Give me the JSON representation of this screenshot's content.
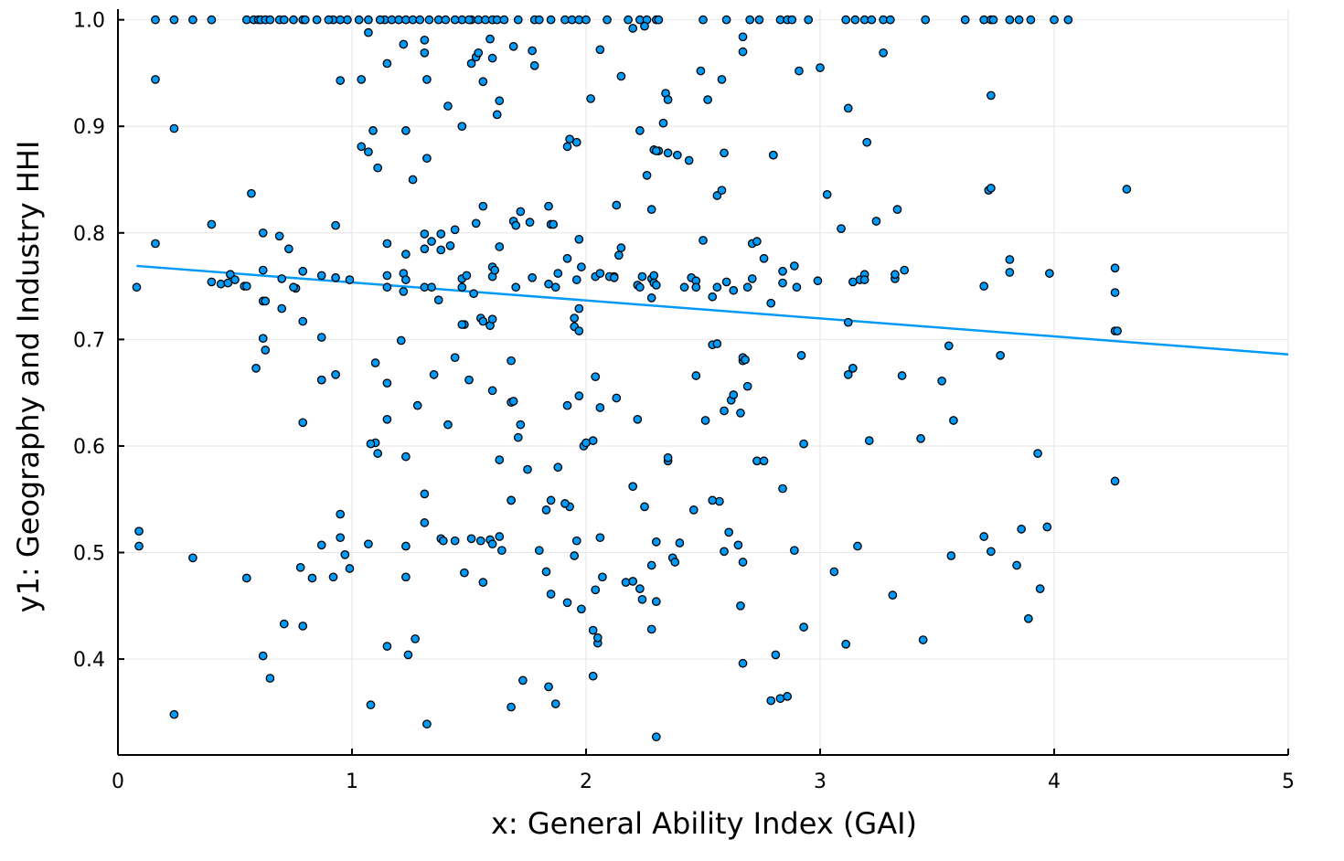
{
  "chart_data": {
    "type": "scatter",
    "title": "",
    "xlabel": "x: General Ability Index (GAI)",
    "ylabel": "y1: Geography and Industry HHI",
    "xlim": [
      0,
      5
    ],
    "ylim": [
      0.31,
      1.01
    ],
    "xticks": [
      0,
      1,
      2,
      3,
      4,
      5
    ],
    "xtick_labels": [
      "0",
      "1",
      "2",
      "3",
      "4",
      "5"
    ],
    "yticks": [
      0.4,
      0.5,
      0.6,
      0.7,
      0.8,
      0.9,
      1.0
    ],
    "ytick_labels": [
      "0.4",
      "0.5",
      "0.6",
      "0.7",
      "0.8",
      "0.9",
      "1.0"
    ],
    "grid": true,
    "legend": "none",
    "point_color": "#009af9",
    "line_color": "#009af9",
    "trend_line": {
      "x": [
        0.08,
        5.0
      ],
      "y": [
        0.769,
        0.686
      ]
    },
    "series": [
      {
        "x": [
          0.16,
          0.24,
          0.32,
          0.4,
          0.55,
          0.58,
          0.6,
          0.61,
          0.63,
          0.65,
          0.69,
          0.71,
          0.79,
          0.92,
          0.98,
          1.07,
          1.14,
          1.17,
          1.2,
          1.23,
          1.26,
          1.29,
          1.37,
          1.4,
          1.47,
          1.51,
          1.54,
          1.57,
          1.6,
          1.62,
          1.71,
          1.78,
          1.8,
          1.91,
          1.94,
          2.09,
          2.23,
          2.26,
          2.3,
          2.31,
          2.74,
          2.83,
          2.86,
          2.88,
          2.95,
          3.11,
          3.15,
          3.19,
          3.22,
          3.27,
          3.62,
          3.7,
          3.73,
          3.74,
          3.81,
          4.0,
          4.06,
          0.75,
          0.8,
          0.85,
          0.9,
          0.95,
          1.03,
          1.12,
          1.33,
          1.44,
          1.5,
          1.65,
          1.85,
          1.97,
          2.0,
          2.18,
          2.5,
          2.6,
          2.7,
          3.3,
          3.45,
          3.85,
          3.9,
          0.16,
          0.24,
          0.95,
          1.04,
          1.07,
          1.09,
          1.15,
          1.22,
          1.23,
          1.31,
          1.31,
          1.32,
          1.41,
          1.47,
          1.51,
          1.53,
          1.54,
          1.56,
          1.59,
          1.6,
          1.62,
          1.63,
          1.69,
          1.77,
          1.78,
          1.92,
          1.93,
          1.96,
          2.02,
          2.06,
          2.15,
          2.2,
          2.23,
          2.25,
          2.29,
          2.31,
          2.33,
          2.34,
          2.35,
          2.39,
          2.44,
          2.49,
          2.52,
          2.58,
          2.67,
          2.67,
          2.8,
          2.91,
          3.0,
          3.12,
          3.2,
          3.27,
          3.73,
          0.16,
          0.4,
          0.44,
          0.48,
          0.5,
          0.54,
          0.57,
          0.62,
          0.62,
          0.69,
          0.7,
          0.73,
          0.76,
          0.79,
          0.87,
          0.93,
          1.04,
          1.07,
          1.11,
          1.15,
          1.15,
          1.22,
          1.23,
          1.26,
          1.31,
          1.31,
          1.32,
          1.34,
          1.38,
          1.38,
          1.42,
          1.44,
          1.47,
          1.49,
          1.53,
          1.56,
          1.6,
          1.6,
          1.61,
          1.63,
          1.69,
          1.7,
          1.72,
          1.76,
          1.77,
          1.84,
          1.85,
          1.86,
          1.88,
          1.92,
          1.96,
          1.97,
          1.98,
          2.04,
          2.06,
          2.12,
          2.13,
          2.14,
          2.15,
          2.24,
          2.26,
          2.28,
          2.28,
          2.29,
          2.3,
          2.35,
          2.45,
          2.5,
          2.56,
          2.58,
          2.59,
          2.71,
          2.73,
          2.76,
          2.8,
          2.84,
          2.89,
          3.03,
          3.09,
          3.17,
          3.19,
          3.24,
          3.33,
          3.36,
          3.72,
          3.73,
          3.81,
          3.81,
          3.98,
          4.26,
          4.31,
          0.08,
          0.4,
          0.47,
          0.55,
          0.62,
          0.7,
          0.75,
          0.87,
          0.93,
          0.99,
          1.15,
          1.22,
          1.23,
          1.31,
          1.34,
          1.37,
          1.47,
          1.48,
          1.52,
          1.59,
          1.6,
          1.7,
          1.84,
          1.87,
          1.95,
          1.97,
          2.1,
          2.12,
          2.22,
          2.23,
          2.28,
          2.29,
          2.3,
          2.42,
          2.47,
          2.47,
          2.54,
          2.56,
          2.6,
          2.63,
          2.69,
          2.71,
          2.79,
          2.84,
          2.9,
          2.99,
          3.14,
          3.19,
          3.32,
          3.32,
          3.7,
          4.26,
          4.26,
          0.62,
          0.63,
          0.63,
          0.79,
          0.87,
          1.1,
          1.15,
          1.21,
          1.47,
          1.55,
          1.56,
          1.68,
          1.95,
          1.97,
          2.04,
          2.54,
          2.56,
          2.67,
          2.67,
          2.68,
          2.92,
          3.12,
          3.14,
          3.35,
          3.55,
          3.77,
          4.27,
          0.59,
          0.87,
          0.93,
          1.1,
          1.15,
          1.28,
          1.35,
          1.41,
          1.44,
          1.5,
          1.6,
          1.68,
          1.69,
          1.71,
          1.72,
          1.92,
          1.97,
          1.99,
          2.03,
          2.06,
          2.13,
          2.22,
          2.35,
          2.47,
          2.51,
          2.59,
          2.62,
          2.63,
          2.66,
          2.69,
          2.73,
          3.12,
          3.52,
          3.57,
          0.79,
          1.08,
          1.11,
          1.23,
          1.63,
          1.68,
          1.75,
          1.85,
          1.88,
          1.93,
          2.0,
          2.2,
          2.25,
          2.35,
          2.57,
          2.76,
          2.93,
          3.21,
          3.43,
          3.93,
          4.26,
          0.09,
          0.09,
          0.32,
          0.55,
          0.78,
          0.83,
          0.87,
          0.92,
          0.95,
          0.95,
          0.97,
          0.99,
          1.07,
          1.23,
          1.23,
          1.31,
          1.31,
          1.38,
          1.39,
          1.44,
          1.48,
          1.51,
          1.55,
          1.56,
          1.59,
          1.6,
          1.63,
          1.64,
          1.68,
          1.8,
          1.83,
          1.83,
          1.85,
          1.91,
          1.95,
          1.96,
          1.98,
          2.04,
          2.05,
          2.06,
          2.07,
          2.17,
          2.2,
          2.23,
          2.28,
          2.3,
          2.3,
          2.37,
          2.38,
          2.4,
          2.46,
          2.54,
          2.59,
          2.61,
          2.65,
          2.66,
          2.67,
          2.84,
          2.89,
          3.06,
          3.16,
          3.31,
          3.56,
          3.7,
          3.73,
          3.84,
          3.86,
          3.94,
          3.97,
          0.24,
          0.62,
          0.65,
          0.71,
          0.79,
          1.08,
          1.15,
          1.24,
          1.27,
          1.32,
          1.68,
          1.73,
          1.84,
          1.87,
          1.92,
          2.03,
          2.03,
          2.05,
          2.24,
          2.28,
          2.3,
          2.67,
          2.79,
          2.81,
          2.83,
          2.86,
          2.93,
          3.11,
          3.44,
          3.89
        ],
        "y": [
          1,
          1,
          1,
          1,
          1,
          1,
          1,
          1,
          1,
          1,
          1,
          1,
          1,
          1,
          1,
          1,
          1,
          1,
          1,
          1,
          1,
          1,
          1,
          1,
          1,
          1,
          1,
          1,
          1,
          1,
          1,
          1,
          1,
          1,
          1,
          1,
          1,
          1,
          1,
          1,
          1,
          1,
          1,
          1,
          1,
          1,
          1,
          1,
          1,
          1,
          1,
          1,
          1,
          1,
          1,
          1,
          1,
          1,
          1,
          1,
          1,
          1,
          1,
          1,
          1,
          1,
          1,
          1,
          1,
          1,
          1,
          1,
          1,
          1,
          1,
          1,
          1,
          1,
          1,
          0.944,
          0.898,
          0.943,
          0.944,
          0.988,
          0.896,
          0.959,
          0.977,
          0.896,
          0.981,
          0.969,
          0.944,
          0.919,
          0.9,
          0.959,
          0.965,
          0.969,
          0.942,
          0.982,
          0.964,
          0.911,
          0.924,
          0.975,
          0.971,
          0.957,
          0.881,
          0.888,
          0.885,
          0.926,
          0.972,
          0.947,
          0.992,
          0.896,
          0.994,
          0.878,
          0.877,
          0.903,
          0.931,
          0.925,
          0.873,
          0.868,
          0.952,
          0.925,
          0.944,
          0.97,
          0.984,
          0.873,
          0.952,
          0.955,
          0.917,
          0.885,
          0.969,
          0.929,
          0.79,
          0.808,
          0.752,
          0.761,
          0.756,
          0.75,
          0.837,
          0.8,
          0.765,
          0.797,
          0.757,
          0.785,
          0.748,
          0.764,
          0.76,
          0.807,
          0.881,
          0.876,
          0.861,
          0.79,
          0.76,
          0.762,
          0.78,
          0.85,
          0.799,
          0.785,
          0.87,
          0.792,
          0.784,
          0.799,
          0.788,
          0.803,
          0.757,
          0.76,
          0.809,
          0.825,
          0.768,
          0.759,
          0.765,
          0.787,
          0.811,
          0.807,
          0.82,
          0.81,
          0.758,
          0.825,
          0.808,
          0.808,
          0.762,
          0.776,
          0.756,
          0.794,
          0.768,
          0.759,
          0.762,
          0.759,
          0.826,
          0.779,
          0.786,
          0.759,
          0.854,
          0.757,
          0.822,
          0.76,
          0.877,
          0.875,
          0.758,
          0.793,
          0.835,
          0.84,
          0.875,
          0.79,
          0.792,
          0.776,
          0.873,
          0.764,
          0.769,
          0.836,
          0.804,
          0.756,
          0.761,
          0.811,
          0.822,
          0.765,
          0.84,
          0.842,
          0.763,
          0.775,
          0.762,
          0.767,
          0.841,
          0.749,
          0.754,
          0.753,
          0.75,
          0.736,
          0.729,
          0.749,
          0.702,
          0.758,
          0.756,
          0.749,
          0.745,
          0.756,
          0.749,
          0.749,
          0.737,
          0.749,
          0.714,
          0.743,
          0.713,
          0.719,
          0.749,
          0.752,
          0.749,
          0.712,
          0.729,
          0.759,
          0.758,
          0.751,
          0.749,
          0.739,
          0.753,
          0.751,
          0.749,
          0.755,
          0.749,
          0.74,
          0.749,
          0.754,
          0.746,
          0.749,
          0.757,
          0.734,
          0.753,
          0.749,
          0.755,
          0.754,
          0.756,
          0.757,
          0.761,
          0.75,
          0.744,
          0.708,
          0.701,
          0.69,
          0.736,
          0.717,
          0.662,
          0.678,
          0.659,
          0.699,
          0.714,
          0.72,
          0.717,
          0.68,
          0.72,
          0.708,
          0.665,
          0.695,
          0.696,
          0.68,
          0.683,
          0.681,
          0.685,
          0.716,
          0.673,
          0.666,
          0.694,
          0.685,
          0.708,
          0.673,
          0.662,
          0.667,
          0.603,
          0.625,
          0.638,
          0.667,
          0.62,
          0.683,
          0.662,
          0.652,
          0.641,
          0.642,
          0.608,
          0.62,
          0.638,
          0.647,
          0.6,
          0.605,
          0.636,
          0.645,
          0.625,
          0.586,
          0.666,
          0.624,
          0.633,
          0.643,
          0.648,
          0.631,
          0.656,
          0.586,
          0.667,
          0.661,
          0.624,
          0.622,
          0.602,
          0.593,
          0.59,
          0.587,
          0.549,
          0.578,
          0.549,
          0.58,
          0.543,
          0.603,
          0.562,
          0.543,
          0.589,
          0.548,
          0.586,
          0.602,
          0.605,
          0.607,
          0.593,
          0.567,
          0.52,
          0.506,
          0.495,
          0.476,
          0.486,
          0.476,
          0.507,
          0.477,
          0.514,
          0.536,
          0.498,
          0.485,
          0.508,
          0.506,
          0.477,
          0.555,
          0.528,
          0.513,
          0.511,
          0.511,
          0.481,
          0.513,
          0.511,
          0.472,
          0.512,
          0.508,
          0.515,
          0.502,
          0.549,
          0.502,
          0.482,
          0.54,
          0.461,
          0.546,
          0.497,
          0.511,
          0.447,
          0.465,
          0.415,
          0.514,
          0.477,
          0.472,
          0.473,
          0.466,
          0.488,
          0.51,
          0.454,
          0.495,
          0.491,
          0.509,
          0.54,
          0.549,
          0.501,
          0.519,
          0.507,
          0.45,
          0.491,
          0.56,
          0.502,
          0.482,
          0.506,
          0.46,
          0.497,
          0.515,
          0.501,
          0.488,
          0.522,
          0.466,
          0.524,
          0.348,
          0.403,
          0.382,
          0.433,
          0.431,
          0.357,
          0.412,
          0.404,
          0.419,
          0.339,
          0.355,
          0.38,
          0.374,
          0.358,
          0.453,
          0.384,
          0.427,
          0.42,
          0.456,
          0.428,
          0.327,
          0.396,
          0.361,
          0.404,
          0.363,
          0.365,
          0.43,
          0.414,
          0.418,
          0.438
        ]
      }
    ]
  }
}
